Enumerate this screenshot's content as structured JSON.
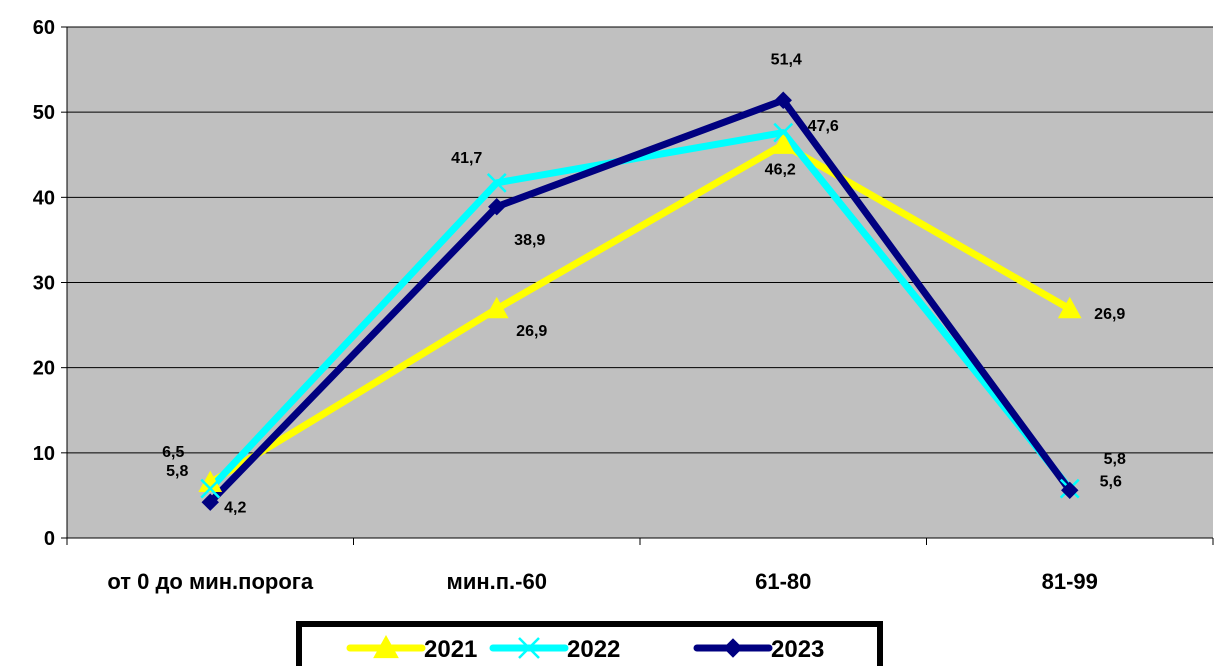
{
  "chart_data": {
    "type": "line",
    "title": "",
    "xlabel": "",
    "ylabel": "",
    "categories": [
      "от 0 до мин.порога",
      "мин.п.-60",
      "61-80",
      "81-99"
    ],
    "ylim": [
      0,
      60
    ],
    "yticks": [
      "0",
      "10",
      "20",
      "30",
      "40",
      "50",
      "60"
    ],
    "grid": true,
    "legend_position": "bottom",
    "plot_background": "#c0c0c0",
    "series": [
      {
        "name": "2021",
        "color": "#ffff00",
        "marker": "triangle",
        "values": [
          6.5,
          26.9,
          46.2,
          26.9
        ],
        "labels": [
          "6,5",
          "26,9",
          "46,2",
          "26,9"
        ]
      },
      {
        "name": "2022",
        "color": "#00ffff",
        "marker": "x",
        "values": [
          5.8,
          41.7,
          47.6,
          5.8
        ],
        "labels": [
          "5,8",
          "41,7",
          "47,6",
          "5,8"
        ]
      },
      {
        "name": "2023",
        "color": "#000080",
        "marker": "diamond",
        "values": [
          4.2,
          38.9,
          51.4,
          5.6
        ],
        "labels": [
          "4,2",
          "38,9",
          "51,4",
          "5,6"
        ]
      }
    ]
  }
}
